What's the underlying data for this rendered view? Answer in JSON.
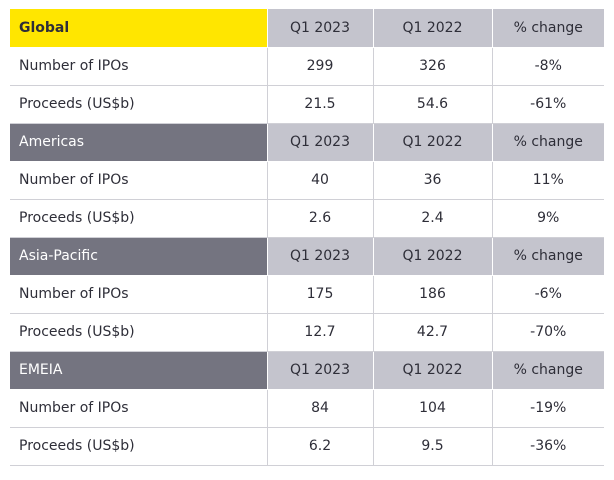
{
  "sections": [
    {
      "header": [
        "Global",
        "Q1 2023",
        "Q1 2022",
        "% change"
      ],
      "rows": [
        [
          "Number of IPOs",
          "299",
          "326",
          "-8%"
        ],
        [
          "Proceeds (US$b)",
          "21.5",
          "54.6",
          "-61%"
        ]
      ]
    },
    {
      "header": [
        "Americas",
        "Q1 2023",
        "Q1 2022",
        "% change"
      ],
      "rows": [
        [
          "Number of IPOs",
          "40",
          "36",
          "11%"
        ],
        [
          "Proceeds (US$b)",
          "2.6",
          "2.4",
          "9%"
        ]
      ]
    },
    {
      "header": [
        "Asia-Pacific",
        "Q1 2023",
        "Q1 2022",
        "% change"
      ],
      "rows": [
        [
          "Number of IPOs",
          "175",
          "186",
          "-6%"
        ],
        [
          "Proceeds (US$b)",
          "12.7",
          "42.7",
          "-70%"
        ]
      ]
    },
    {
      "header": [
        "EMEIA",
        "Q1 2023",
        "Q1 2022",
        "% change"
      ],
      "rows": [
        [
          "Number of IPOs",
          "84",
          "104",
          "-19%"
        ],
        [
          "Proceeds (US$b)",
          "6.2",
          "9.5",
          "-36%"
        ]
      ]
    }
  ]
}
